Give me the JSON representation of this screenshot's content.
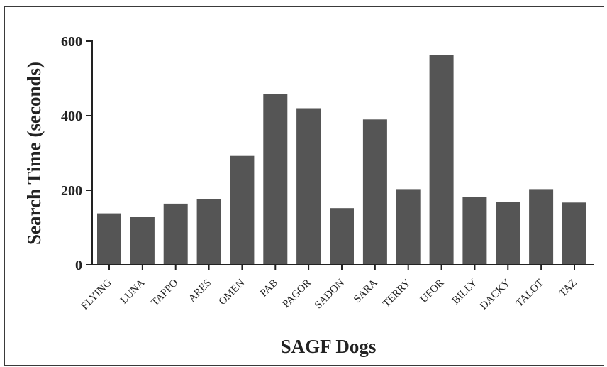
{
  "chart_data": {
    "type": "bar",
    "title": "",
    "xlabel": "SAGF Dogs",
    "ylabel": "Search Time (seconds)",
    "ylim": [
      0,
      600
    ],
    "yticks": [
      0,
      200,
      400,
      600
    ],
    "grid": false,
    "bar_color": "#555555",
    "categories": [
      "FLYING",
      "LUNA",
      "TAPPO",
      "ARES",
      "OMEN",
      "PAB",
      "PAGOR",
      "SADON",
      "SARA",
      "TERRY",
      "UFOR",
      "BILLY",
      "DACKY",
      "TALOT",
      "TAZ"
    ],
    "values": [
      138,
      129,
      164,
      177,
      292,
      459,
      420,
      152,
      390,
      203,
      563,
      181,
      169,
      203,
      167
    ]
  }
}
